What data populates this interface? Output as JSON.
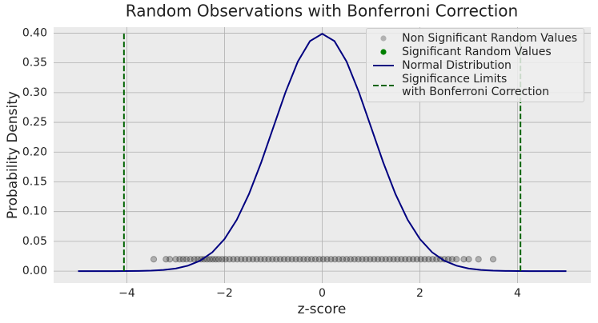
{
  "chart_data": {
    "type": "line",
    "title": "Random Observations with Bonferroni Correction",
    "xlabel": "z-score",
    "ylabel": "Probability Density",
    "xlim": [
      -5.5,
      5.5
    ],
    "ylim": [
      -0.02,
      0.41
    ],
    "xticks": [
      {
        "value": -4,
        "label": "−4"
      },
      {
        "value": -2,
        "label": "−2"
      },
      0,
      2,
      4
    ],
    "yticks": [
      {
        "value": 0,
        "label": "0.00"
      },
      {
        "value": 0.05,
        "label": "0.05"
      },
      {
        "value": 0.1,
        "label": "0.10"
      },
      {
        "value": 0.15,
        "label": "0.15"
      },
      {
        "value": 0.2,
        "label": "0.20"
      },
      {
        "value": 0.25,
        "label": "0.25"
      },
      {
        "value": 0.3,
        "label": "0.30"
      },
      {
        "value": 0.35,
        "label": "0.35"
      },
      {
        "value": 0.4,
        "label": "0.40"
      }
    ],
    "grid": true,
    "legend": "upper right",
    "series": [
      {
        "name": "Non Significant Random Values",
        "color": "#000000",
        "style": "marker",
        "x": [
          -3.45,
          -3.2,
          -3.12,
          -3.0,
          -2.92,
          -2.85,
          -2.78,
          -2.7,
          -2.62,
          -2.55,
          -2.48,
          -2.42,
          -2.36,
          -2.3,
          -2.24,
          -2.18,
          -2.12,
          -2.05,
          -1.98,
          -1.9,
          -1.82,
          -1.74,
          -1.66,
          -1.58,
          -1.5,
          -1.42,
          -1.34,
          -1.26,
          -1.18,
          -1.1,
          -1.02,
          -0.94,
          -0.86,
          -0.78,
          -0.7,
          -0.62,
          -0.54,
          -0.46,
          -0.38,
          -0.3,
          -0.22,
          -0.14,
          -0.06,
          0.02,
          0.1,
          0.18,
          0.26,
          0.34,
          0.42,
          0.5,
          0.58,
          0.66,
          0.74,
          0.82,
          0.9,
          0.98,
          1.06,
          1.14,
          1.22,
          1.3,
          1.38,
          1.46,
          1.54,
          1.62,
          1.7,
          1.78,
          1.86,
          1.94,
          2.02,
          2.1,
          2.18,
          2.26,
          2.34,
          2.42,
          2.5,
          2.58,
          2.66,
          2.75,
          2.9,
          3.0,
          3.2,
          3.5
        ],
        "values": [
          0.02,
          0.02,
          0.02,
          0.02,
          0.02,
          0.02,
          0.02,
          0.02,
          0.02,
          0.02,
          0.02,
          0.02,
          0.02,
          0.02,
          0.02,
          0.02,
          0.02,
          0.02,
          0.02,
          0.02,
          0.02,
          0.02,
          0.02,
          0.02,
          0.02,
          0.02,
          0.02,
          0.02,
          0.02,
          0.02,
          0.02,
          0.02,
          0.02,
          0.02,
          0.02,
          0.02,
          0.02,
          0.02,
          0.02,
          0.02,
          0.02,
          0.02,
          0.02,
          0.02,
          0.02,
          0.02,
          0.02,
          0.02,
          0.02,
          0.02,
          0.02,
          0.02,
          0.02,
          0.02,
          0.02,
          0.02,
          0.02,
          0.02,
          0.02,
          0.02,
          0.02,
          0.02,
          0.02,
          0.02,
          0.02,
          0.02,
          0.02,
          0.02,
          0.02,
          0.02,
          0.02,
          0.02,
          0.02,
          0.02,
          0.02,
          0.02,
          0.02,
          0.02,
          0.02,
          0.02,
          0.02,
          0.02
        ]
      },
      {
        "name": "Significant Random Values",
        "color": "#008000",
        "style": "marker",
        "x": [],
        "values": []
      },
      {
        "name": "Normal Distribution",
        "color": "#000080",
        "style": "line",
        "x": [
          -5,
          -4.75,
          -4.5,
          -4.25,
          -4,
          -3.75,
          -3.5,
          -3.25,
          -3,
          -2.75,
          -2.5,
          -2.25,
          -2,
          -1.75,
          -1.5,
          -1.25,
          -1,
          -0.75,
          -0.5,
          -0.25,
          0,
          0.25,
          0.5,
          0.75,
          1,
          1.25,
          1.5,
          1.75,
          2,
          2.25,
          2.5,
          2.75,
          3,
          3.25,
          3.5,
          3.75,
          4,
          4.25,
          4.5,
          4.75,
          5
        ],
        "values": [
          0,
          0,
          0,
          0,
          0.0001,
          0.0004,
          0.0009,
          0.002,
          0.0044,
          0.0091,
          0.0175,
          0.0317,
          0.054,
          0.0863,
          0.1295,
          0.1826,
          0.242,
          0.3011,
          0.3521,
          0.3867,
          0.3989,
          0.3867,
          0.3521,
          0.3011,
          0.242,
          0.1826,
          0.1295,
          0.0863,
          0.054,
          0.0317,
          0.0175,
          0.0091,
          0.0044,
          0.002,
          0.0009,
          0.0004,
          0.0001,
          0,
          0,
          0,
          0
        ]
      },
      {
        "name": "Significance Limits\nwith Bonferroni Correction",
        "color": "#006400",
        "style": "dashed",
        "x": [
          -4.06,
          -4.06,
          null,
          4.06,
          4.06
        ],
        "values": [
          0,
          0.4,
          null,
          0,
          0.4
        ]
      }
    ]
  }
}
